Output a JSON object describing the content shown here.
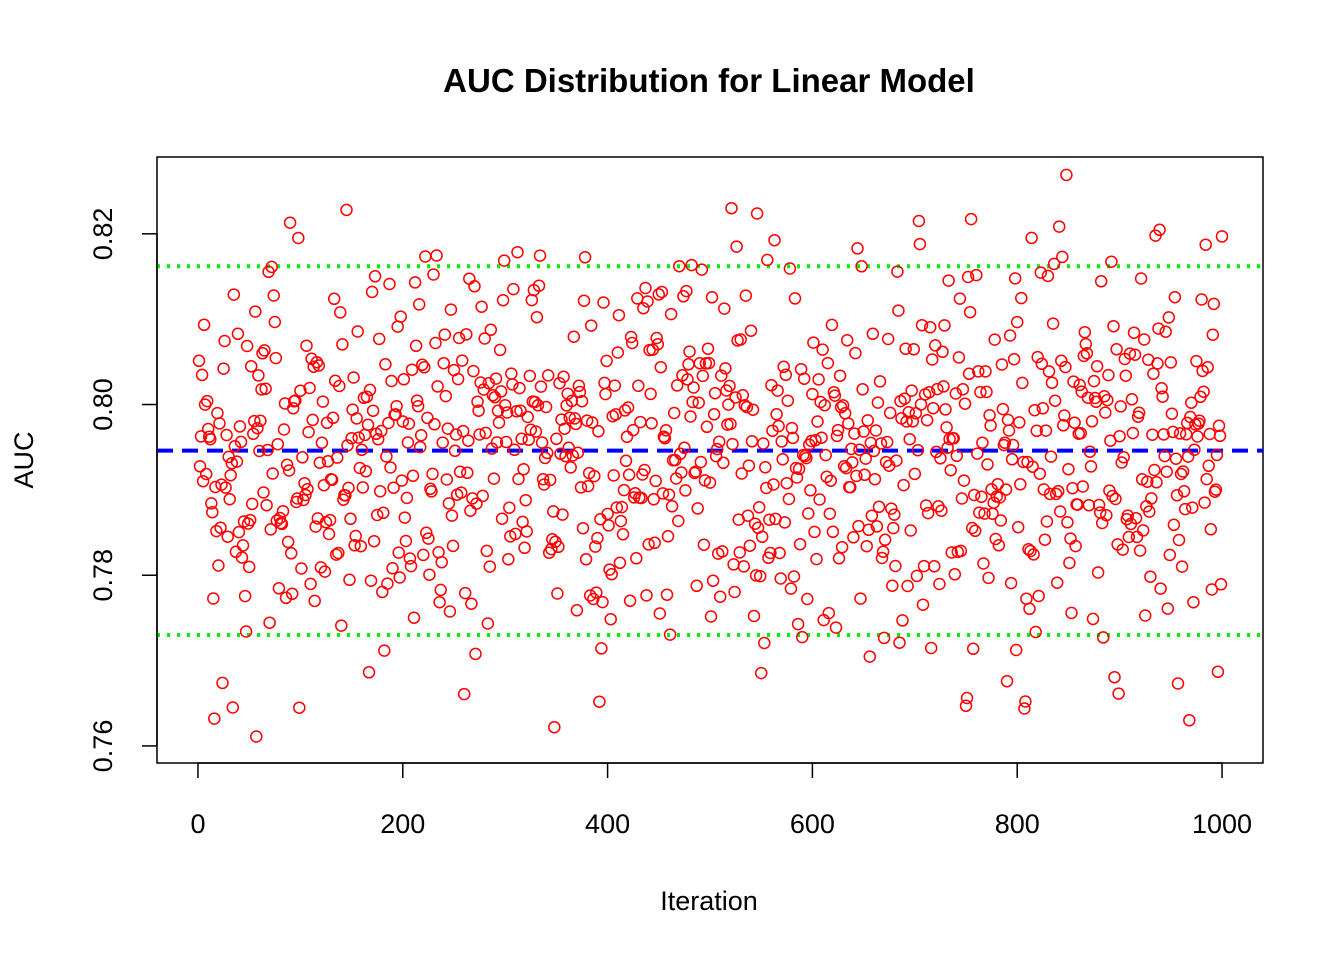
{
  "chart_data": {
    "type": "scatter",
    "title": "AUC Distribution for Linear Model",
    "xlabel": "Iteration",
    "ylabel": "AUC",
    "xlim": [
      -40,
      1040
    ],
    "ylim": [
      0.758,
      0.829
    ],
    "x_ticks": [
      0,
      200,
      400,
      600,
      800,
      1000
    ],
    "x_tick_labels": [
      "0",
      "200",
      "400",
      "600",
      "800",
      "1000"
    ],
    "y_ticks": [
      0.76,
      0.78,
      0.8,
      0.82
    ],
    "y_tick_labels": [
      "0.76",
      "0.78",
      "0.80",
      "0.82"
    ],
    "grid": false,
    "legend": "none",
    "reference_lines": {
      "mean": 0.7946,
      "lower": 0.773,
      "upper": 0.8162
    },
    "series": [
      {
        "color": "#ff0000",
        "marker": "open-circle",
        "n_points": 1000,
        "x_range": [
          1,
          1000
        ],
        "mean": 0.7946,
        "sd": 0.011,
        "y_min": 0.7611,
        "y_max": 0.8269,
        "notable_points": [
          {
            "x": 57,
            "y": 0.7611
          },
          {
            "x": 16,
            "y": 0.7632
          },
          {
            "x": 34,
            "y": 0.7645
          },
          {
            "x": 145,
            "y": 0.8228
          },
          {
            "x": 90,
            "y": 0.8213
          },
          {
            "x": 521,
            "y": 0.823
          },
          {
            "x": 348,
            "y": 0.7622
          },
          {
            "x": 704,
            "y": 0.8215
          },
          {
            "x": 848,
            "y": 0.8269
          },
          {
            "x": 968,
            "y": 0.763
          },
          {
            "x": 1000,
            "y": 0.8197
          },
          {
            "x": 750,
            "y": 0.7647
          },
          {
            "x": 808,
            "y": 0.7652
          }
        ]
      }
    ]
  },
  "colors": {
    "points": "#ff0000",
    "mean_line": "#0000ff",
    "bound_lines": "#00ee00",
    "frame": "#000000"
  }
}
